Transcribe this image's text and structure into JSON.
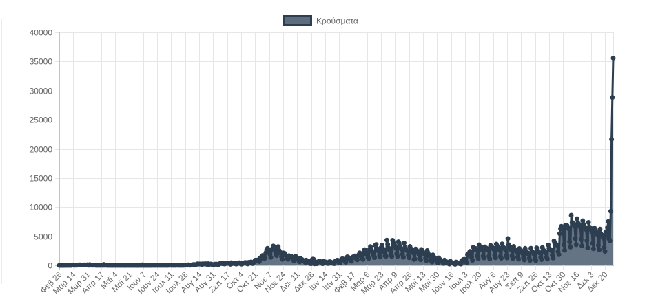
{
  "chart_data": {
    "type": "line",
    "series": [
      {
        "name": "Κρούσματα",
        "values": [
          1,
          2,
          0,
          1,
          0,
          0,
          0,
          2,
          22,
          14,
          4,
          28,
          11,
          5,
          10,
          18,
          73,
          38,
          38,
          21,
          56,
          31,
          46,
          77,
          35,
          94,
          71,
          48,
          52,
          78,
          71,
          95,
          64,
          61,
          102,
          50,
          31,
          129,
          62,
          41,
          20,
          62,
          25,
          56,
          27,
          19,
          20,
          33,
          12,
          22,
          10,
          39,
          33,
          6,
          156,
          17,
          77,
          23,
          12,
          17,
          12,
          11,
          16,
          10,
          15,
          7,
          8,
          11,
          10,
          10,
          9,
          15,
          12,
          14,
          3,
          16,
          14,
          9,
          10,
          4,
          13,
          4,
          25,
          16,
          17,
          3,
          21,
          9,
          7,
          5,
          8,
          11,
          7,
          10,
          7,
          6,
          2,
          21,
          14,
          6,
          6,
          97,
          4,
          6,
          8,
          10,
          7,
          14,
          9,
          7,
          17,
          15,
          3,
          27,
          18,
          19,
          20,
          17,
          25,
          9,
          25,
          15,
          33,
          18,
          19,
          20,
          16,
          26,
          11,
          10,
          20,
          6,
          14,
          26,
          25,
          28,
          41,
          19,
          30,
          15,
          25,
          21,
          29,
          36,
          33,
          11,
          37,
          11,
          25,
          21,
          36,
          21,
          36,
          57,
          38,
          46,
          40,
          110,
          41,
          33,
          78,
          41,
          124,
          153,
          151,
          99,
          126,
          203,
          262,
          204,
          254,
          230,
          217,
          132,
          269,
          228,
          269,
          221,
          284,
          228,
          135,
          293,
          168,
          194,
          236,
          202,
          123,
          155,
          117,
          211,
          214,
          219,
          169,
          129,
          153,
          311,
          340,
          372,
          301,
          338,
          261,
          229,
          339,
          385,
          335,
          368,
          382,
          286,
          187,
          453,
          306,
          418,
          357,
          342,
          279,
          219,
          411,
          358,
          367,
          460,
          317,
          218,
          224,
          388,
          407,
          461,
          499,
          437,
          302,
          254,
          512,
          508,
          465,
          597,
          497,
          327,
          455,
          667,
          882,
          865,
          842,
          935,
          746,
          647,
          1259,
          1211,
          1547,
          1690,
          1490,
          1150,
          1301,
          2166,
          2646,
          2917,
          2752,
          2302,
          1914,
          1388,
          2752,
          2783,
          3316,
          3209,
          2835,
          2198,
          1695,
          2468,
          3209,
          2581,
          2311,
          2090,
          1498,
          1044,
          2152,
          1855,
          2056,
          1736,
          1657,
          1193,
          1044,
          1673,
          1600,
          1460,
          1534,
          1395,
          1003,
          782,
          1347,
          1575,
          1395,
          1130,
          1003,
          825,
          616,
          1222,
          1059,
          1006,
          882,
          801,
          660,
          497,
          899,
          774,
          776,
          605,
          431,
          319,
          290,
          942,
          1081,
          1047,
          262,
          305,
          302,
          294,
          627,
          601,
          707,
          695,
          558,
          395,
          291,
          692,
          592,
          605,
          582,
          420,
          339,
          338,
          617,
          629,
          582,
          481,
          440,
          357,
          309,
          668,
          769,
          833,
          906,
          640,
          417,
          412,
          900,
          1053,
          1152,
          1024,
          1058,
          750,
          532,
          1131,
          1478,
          1410,
          1155,
          1154,
          795,
          718,
          1276,
          1456,
          1457,
          1629,
          1386,
          1140,
          964,
          1626,
          1850,
          2147,
          1994,
          1639,
          1222,
          1037,
          2199,
          2702,
          1946,
          2219,
          2066,
          1376,
          1212,
          2741,
          3215,
          2702,
          2409,
          2287,
          1678,
          1359,
          3465,
          3586,
          2883,
          2727,
          2425,
          1653,
          1445,
          3051,
          3465,
          2914,
          2722,
          2287,
          1641,
          1574,
          4340,
          3586,
          3013,
          2714,
          2558,
          1802,
          1549,
          4311,
          3834,
          3647,
          3319,
          2923,
          1992,
          1564,
          4061,
          3811,
          3311,
          2891,
          2776,
          1911,
          1407,
          3843,
          3089,
          2831,
          2613,
          2490,
          1776,
          1319,
          3249,
          2900,
          2632,
          2329,
          2153,
          1020,
          1103,
          2801,
          2632,
          2450,
          2199,
          1862,
          1213,
          968,
          2734,
          2452,
          2169,
          2069,
          1873,
          1193,
          821,
          2545,
          2134,
          1807,
          1590,
          1417,
          808,
          578,
          1795,
          1484,
          1214,
          1163,
          1015,
          624,
          431,
          1283,
          1090,
          889,
          790,
          763,
          469,
          334,
          906,
          706,
          645,
          572,
          525,
          351,
          217,
          725,
          534,
          485,
          412,
          417,
          241,
          184,
          572,
          470,
          443,
          418,
          433,
          264,
          233,
          819,
          672,
          1013,
          1033,
          1029,
          628,
          437,
          1858,
          1798,
          2141,
          2400,
          2223,
          1420,
          874,
          3109,
          2845,
          2772,
          2888,
          2790,
          1632,
          1184,
          3520,
          2917,
          2990,
          3094,
          2626,
          1586,
          1282,
          3171,
          2883,
          2950,
          2866,
          2647,
          1560,
          1113,
          3418,
          3273,
          3029,
          2995,
          2721,
          1678,
          1306,
          3657,
          3344,
          3056,
          3040,
          2611,
          1550,
          1237,
          3693,
          3165,
          3040,
          2896,
          2686,
          1695,
          1290,
          4608,
          3520,
          3205,
          3152,
          2690,
          1647,
          1191,
          3239,
          2820,
          2696,
          2502,
          2226,
          1455,
          1071,
          2893,
          2604,
          2526,
          2295,
          2022,
          1330,
          940,
          2915,
          2452,
          2300,
          2158,
          1901,
          1214,
          862,
          2936,
          2381,
          2290,
          2171,
          1894,
          1157,
          818,
          2992,
          2458,
          2360,
          2241,
          2077,
          1352,
          994,
          3065,
          2575,
          2537,
          2334,
          2143,
          1438,
          1084,
          3511,
          2937,
          2787,
          2715,
          2518,
          1733,
          1270,
          4208,
          3741,
          3739,
          3562,
          3435,
          2360,
          1846,
          5449,
          6309,
          6700,
          6510,
          6180,
          3550,
          2600,
          6909,
          6730,
          6808,
          6505,
          6267,
          4082,
          3137,
          8613,
          7335,
          7317,
          7024,
          6708,
          4601,
          3557,
          8011,
          7276,
          7133,
          6923,
          6567,
          4480,
          3337,
          7650,
          7053,
          6689,
          6551,
          6156,
          4262,
          3010,
          7373,
          6598,
          6479,
          6177,
          5795,
          3785,
          2853,
          6451,
          6110,
          5826,
          5682,
          5268,
          3452,
          2678,
          6218,
          5437,
          5231,
          5159,
          4710,
          3045,
          2407,
          5775,
          5163,
          6495,
          7526,
          4550,
          4200,
          9284,
          21657,
          28828,
          35580
        ]
      }
    ],
    "x_tick_labels": [
      "Φεβ 26",
      "Μαρ 14",
      "Μαρ 31",
      "Απρ 17",
      "Μαϊ 4",
      "Μαϊ 21",
      "Ιουν 7",
      "Ιουν 24",
      "Ιουλ 11",
      "Ιουλ 28",
      "Αυγ 14",
      "Αυγ 31",
      "Σεπ 17",
      "Οκτ 4",
      "Οκτ 21",
      "Νοε 7",
      "Νοε 24",
      "Δεκ 11",
      "Δεκ 28",
      "Ιαν 14",
      "Ιαν 31",
      "Φεβ 17",
      "Μαρ 6",
      "Μαρ 23",
      "Απρ 9",
      "Απρ 26",
      "Μαϊ 13",
      "Μαϊ 30",
      "Ιουν 16",
      "Ιουλ 3",
      "Ιουλ 20",
      "Αυγ 6",
      "Αυγ 23",
      "Σεπ 9",
      "Σεπ 26",
      "Οκτ 13",
      "Οκτ 30",
      "Νοε 16",
      "Δεκ 3",
      "Δεκ 20"
    ],
    "x_tick_every": 17,
    "y_ticks": [
      0,
      5000,
      10000,
      15000,
      20000,
      25000,
      30000,
      35000,
      40000
    ],
    "ylim": [
      0,
      40000
    ],
    "grid": true,
    "legend_position": "top"
  },
  "colors": {
    "line": "#2c3e50",
    "point": "#2c3e50",
    "fill": "#5d6d7e",
    "grid": "#e6e6e6",
    "axis": "#c4c4c4"
  }
}
